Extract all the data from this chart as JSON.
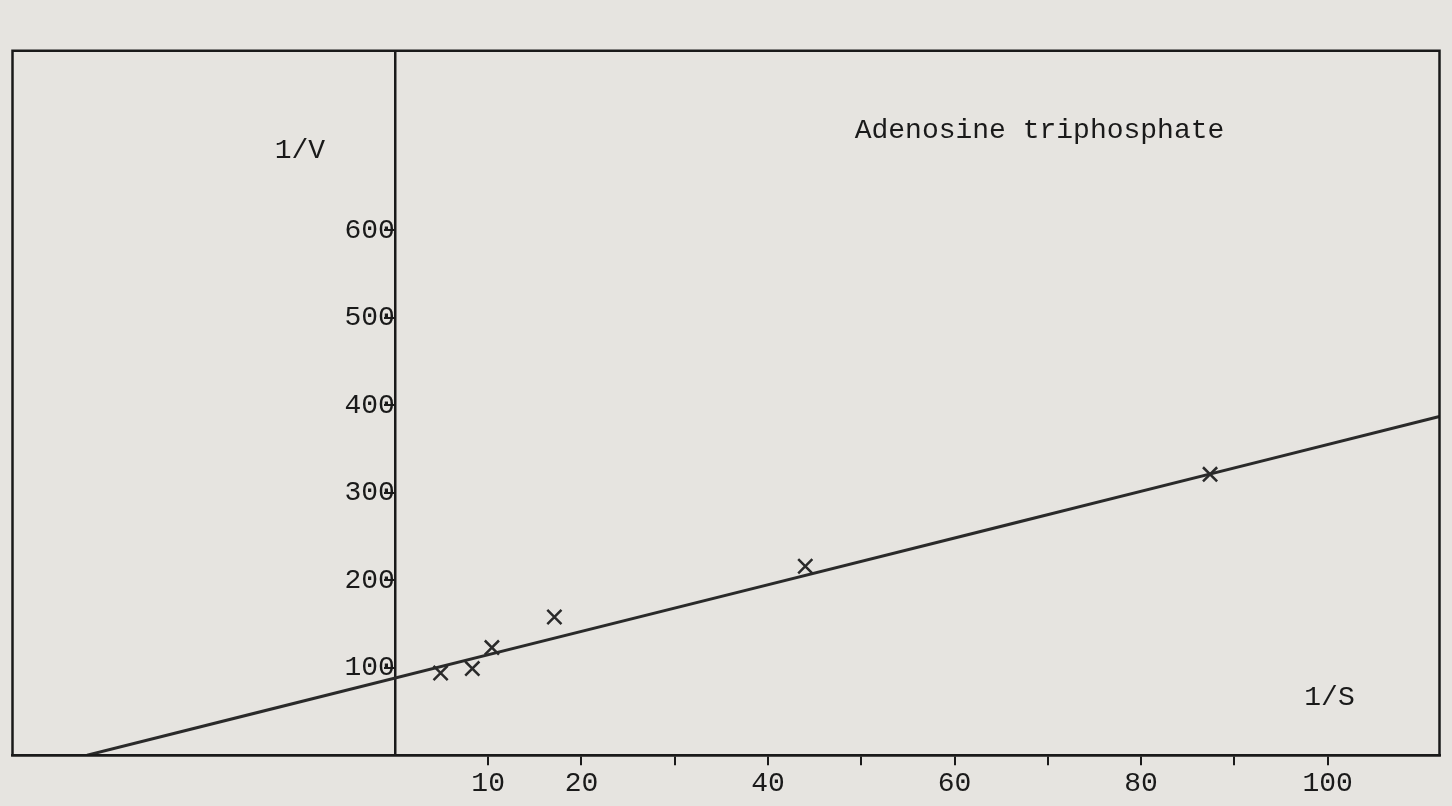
{
  "chart_data": {
    "type": "scatter",
    "title": "Adenosine triphosphate",
    "xlabel": "1/S",
    "ylabel": "1/V",
    "xlim": [
      -41,
      112
    ],
    "ylim": [
      0,
      805
    ],
    "xticks": [
      10,
      20,
      {
        "value": 30,
        "label": null
      },
      40,
      {
        "value": 50,
        "label": null
      },
      60,
      {
        "value": 70,
        "label": null
      },
      80,
      {
        "value": 90,
        "label": null
      },
      100
    ],
    "yticks": [
      100,
      200,
      300,
      400,
      500,
      600
    ],
    "grid": false,
    "series": [
      {
        "marker": "cross",
        "color": "#2a2a2a",
        "x": [
          4.9,
          8.3,
          10.4,
          17.1,
          44.0,
          87.4
        ],
        "values": [
          94,
          99,
          123,
          158,
          216,
          321
        ]
      },
      {
        "type": "line",
        "color": "#2a2a2a",
        "x": [
          -33,
          112
        ],
        "values": [
          0,
          387
        ]
      }
    ]
  }
}
